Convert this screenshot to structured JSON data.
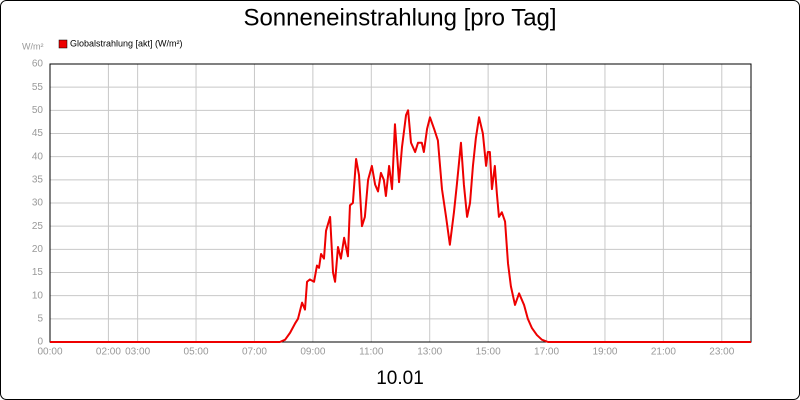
{
  "chart_data": {
    "type": "line",
    "title": "Sonneneinstrahlung [pro Tag]",
    "y_unit": "W/m²",
    "xlabel": "10.01",
    "series": [
      {
        "name": "Globalstrahlung [akt] (W/m²)",
        "color": "#ee0000",
        "x": [
          0,
          7.87,
          8.05,
          8.22,
          8.39,
          8.49,
          8.63,
          8.73,
          8.8,
          8.9,
          9.04,
          9.14,
          9.21,
          9.28,
          9.38,
          9.45,
          9.59,
          9.69,
          9.76,
          9.86,
          9.96,
          10.07,
          10.2,
          10.27,
          10.37,
          10.48,
          10.58,
          10.68,
          10.78,
          10.89,
          11.02,
          11.13,
          11.23,
          11.33,
          11.43,
          11.5,
          11.61,
          11.71,
          11.81,
          11.95,
          12.05,
          12.19,
          12.26,
          12.36,
          12.5,
          12.6,
          12.73,
          12.8,
          12.91,
          13.01,
          13.15,
          13.28,
          13.42,
          13.56,
          13.69,
          13.83,
          13.93,
          14.07,
          14.17,
          14.28,
          14.38,
          14.48,
          14.58,
          14.69,
          14.82,
          14.93,
          14.99,
          15.06,
          15.13,
          15.23,
          15.3,
          15.37,
          15.47,
          15.58,
          15.68,
          15.78,
          15.92,
          16.06,
          16.23,
          16.36,
          16.5,
          16.67,
          16.84,
          17.05,
          24
        ],
        "values": [
          0,
          0,
          0.5,
          2,
          4,
          5,
          8.5,
          7,
          13,
          13.5,
          13,
          16.5,
          16,
          19,
          18,
          24,
          27,
          15,
          13,
          20.5,
          18,
          22.5,
          18.5,
          29.5,
          30,
          39.5,
          36,
          25,
          27,
          35,
          38,
          34,
          32.5,
          36.5,
          35,
          31.5,
          38,
          33,
          47,
          34.5,
          42,
          49,
          50,
          43,
          41,
          43,
          43,
          41,
          46,
          48.5,
          46,
          43.5,
          33,
          27,
          21,
          28,
          34,
          43,
          34,
          27,
          30,
          38,
          44,
          48.5,
          45,
          38,
          41,
          41,
          33,
          38,
          32,
          27,
          28,
          26,
          17,
          12,
          8,
          10.5,
          8,
          5,
          3,
          1.5,
          0.5,
          0,
          0
        ]
      }
    ],
    "xlim": [
      0,
      24
    ],
    "xticks": [
      {
        "value": 0,
        "label": "00:00"
      },
      {
        "value": 2,
        "label": "02:00"
      },
      {
        "value": 3,
        "label": "03:00"
      },
      {
        "value": 5,
        "label": "05:00"
      },
      {
        "value": 7,
        "label": "07:00"
      },
      {
        "value": 9,
        "label": "09:00"
      },
      {
        "value": 11,
        "label": "11:00"
      },
      {
        "value": 13,
        "label": "13:00"
      },
      {
        "value": 15,
        "label": "15:00"
      },
      {
        "value": 17,
        "label": "17:00"
      },
      {
        "value": 19,
        "label": "19:00"
      },
      {
        "value": 21,
        "label": "21:00"
      },
      {
        "value": 23,
        "label": "23:00"
      }
    ],
    "ylim": [
      0,
      60
    ],
    "yticks": [
      0,
      5,
      10,
      15,
      20,
      25,
      30,
      35,
      40,
      45,
      50,
      55,
      60
    ],
    "grid": true
  }
}
